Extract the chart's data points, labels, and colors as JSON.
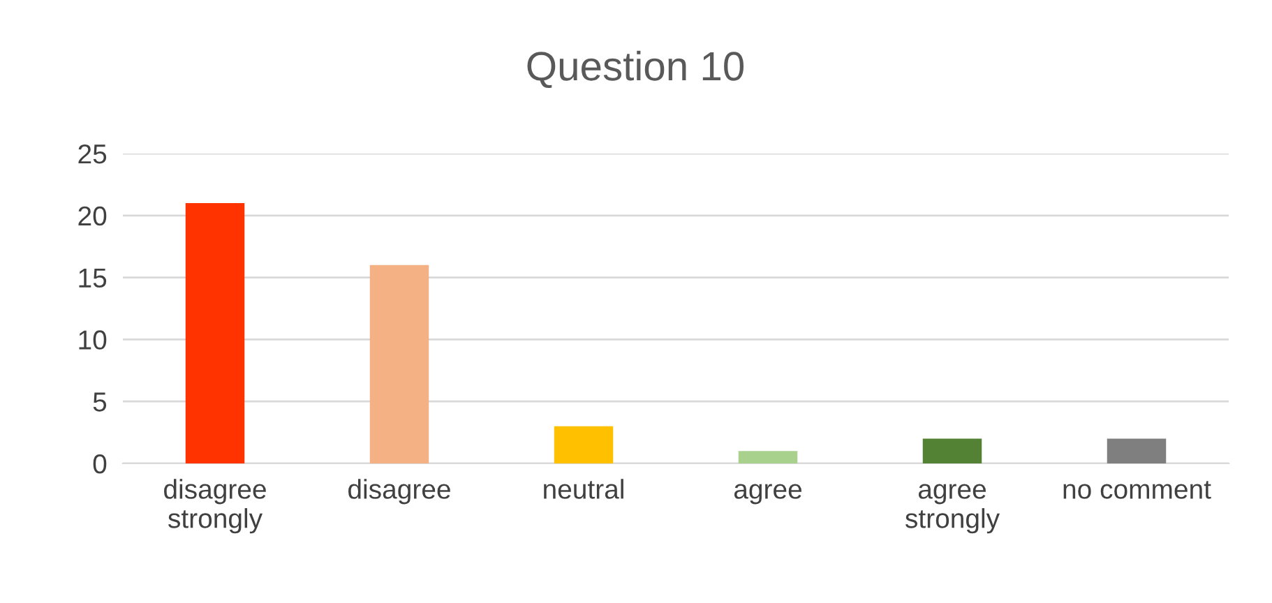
{
  "chart_data": {
    "type": "bar",
    "title": "Question 10",
    "categories": [
      "disagree\nstrongly",
      "disagree",
      "neutral",
      "agree",
      "agree\nstrongly",
      "no comment"
    ],
    "values": [
      21,
      16,
      3,
      1,
      2,
      2
    ],
    "colors": [
      "#ff3300",
      "#f4b183",
      "#ffc000",
      "#a9d18e",
      "#548235",
      "#7f7f7f"
    ],
    "ylim": [
      0,
      25
    ],
    "yticks": [
      0,
      5,
      10,
      15,
      20,
      25
    ],
    "grid": "y",
    "legend": false
  }
}
